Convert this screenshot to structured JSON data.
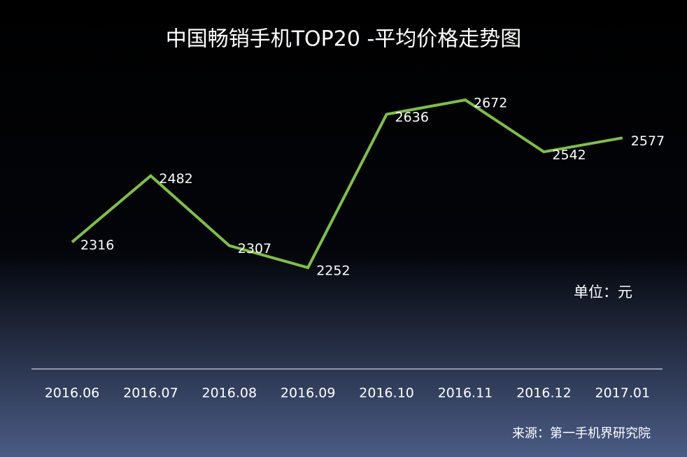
{
  "chart_data": {
    "type": "line",
    "title": "中国畅销手机TOP20 -平均价格走势图",
    "categories": [
      "2016.06",
      "2016.07",
      "2016.08",
      "2016.09",
      "2016.10",
      "2016.11",
      "2016.12",
      "2017.01"
    ],
    "values": [
      2316,
      2482,
      2307,
      2252,
      2636,
      2672,
      2542,
      2577
    ],
    "color": "#7dc242",
    "unit_note": "单位：元",
    "source": "来源：第一手机界研究院"
  }
}
